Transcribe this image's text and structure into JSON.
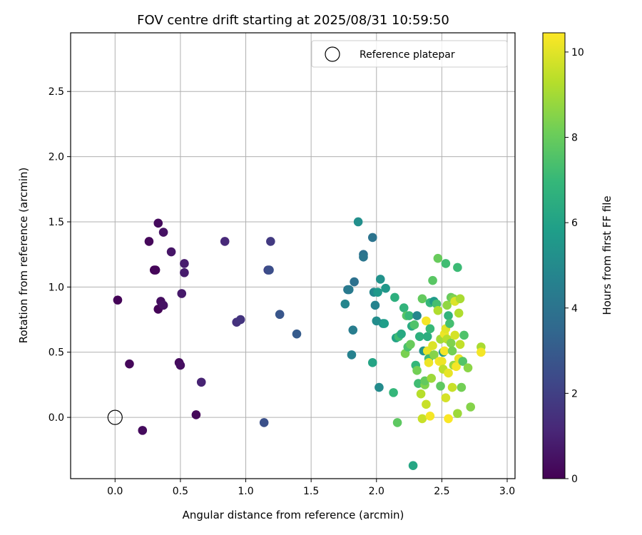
{
  "chart_data": {
    "type": "scatter",
    "title": "FOV centre drift starting at 2025/08/31 10:59:50",
    "xlabel": "Angular distance from reference (arcmin)",
    "ylabel": "Rotation from reference (arcmin)",
    "xlim": [
      -0.34,
      3.06
    ],
    "ylim": [
      -0.47,
      2.95
    ],
    "xticks": [
      0.0,
      0.5,
      1.0,
      1.5,
      2.0,
      2.5,
      3.0
    ],
    "xtick_labels": [
      "0.0",
      "0.5",
      "1.0",
      "1.5",
      "2.0",
      "2.5",
      "3.0"
    ],
    "yticks": [
      0.0,
      0.5,
      1.0,
      1.5,
      2.0,
      2.5
    ],
    "ytick_labels": [
      "0.0",
      "0.5",
      "1.0",
      "1.5",
      "2.0",
      "2.5"
    ],
    "grid": true,
    "legend": {
      "placement": "top-right",
      "entries": [
        {
          "label": "Reference platepar",
          "marker": "open-circle"
        }
      ]
    },
    "reference_point": {
      "x": 0.0,
      "y": 0.0
    },
    "colorbar": {
      "label": "Hours from first FF file",
      "colormap": "viridis",
      "range": [
        0,
        10.45
      ],
      "ticks": [
        0,
        2,
        4,
        6,
        8,
        10
      ],
      "tick_labels": [
        "0",
        "2",
        "4",
        "6",
        "8",
        "10"
      ]
    },
    "colormap_stops": [
      "#440154",
      "#482878",
      "#3e4989",
      "#31688e",
      "#26828e",
      "#1f9e89",
      "#35b779",
      "#6ece58",
      "#b5de2b",
      "#fde725"
    ],
    "points": [
      {
        "x": 0.02,
        "y": 0.9,
        "h": 0.1
      },
      {
        "x": 0.11,
        "y": 0.41,
        "h": 0.2
      },
      {
        "x": 0.21,
        "y": -0.1,
        "h": 0.3
      },
      {
        "x": 0.26,
        "y": 1.35,
        "h": 0.2
      },
      {
        "x": 0.3,
        "y": 1.13,
        "h": 0.1
      },
      {
        "x": 0.31,
        "y": 1.13,
        "h": 0.15
      },
      {
        "x": 0.33,
        "y": 1.49,
        "h": 0.3
      },
      {
        "x": 0.33,
        "y": 0.83,
        "h": 0.1
      },
      {
        "x": 0.35,
        "y": 0.89,
        "h": 0.4
      },
      {
        "x": 0.37,
        "y": 1.42,
        "h": 0.5
      },
      {
        "x": 0.37,
        "y": 0.86,
        "h": 0.5
      },
      {
        "x": 0.43,
        "y": 1.27,
        "h": 0.6
      },
      {
        "x": 0.49,
        "y": 0.42,
        "h": 0.3
      },
      {
        "x": 0.5,
        "y": 0.4,
        "h": 0.4
      },
      {
        "x": 0.51,
        "y": 0.95,
        "h": 0.7
      },
      {
        "x": 0.53,
        "y": 1.18,
        "h": 0.8
      },
      {
        "x": 0.53,
        "y": 1.11,
        "h": 0.8
      },
      {
        "x": 0.62,
        "y": 0.02,
        "h": 0.2
      },
      {
        "x": 0.66,
        "y": 0.27,
        "h": 1.0
      },
      {
        "x": 0.84,
        "y": 1.35,
        "h": 1.2
      },
      {
        "x": 0.93,
        "y": 0.73,
        "h": 1.5
      },
      {
        "x": 0.96,
        "y": 0.75,
        "h": 1.6
      },
      {
        "x": 1.14,
        "y": -0.04,
        "h": 2.6
      },
      {
        "x": 1.17,
        "y": 1.13,
        "h": 2.1
      },
      {
        "x": 1.18,
        "y": 1.13,
        "h": 2.5
      },
      {
        "x": 1.19,
        "y": 1.35,
        "h": 1.8
      },
      {
        "x": 1.26,
        "y": 0.79,
        "h": 2.8
      },
      {
        "x": 1.39,
        "y": 0.64,
        "h": 3.0
      },
      {
        "x": 1.76,
        "y": 0.87,
        "h": 4.8
      },
      {
        "x": 1.78,
        "y": 0.98,
        "h": 4.2
      },
      {
        "x": 1.79,
        "y": 0.98,
        "h": 4.3
      },
      {
        "x": 1.81,
        "y": 0.48,
        "h": 4.6
      },
      {
        "x": 1.82,
        "y": 0.67,
        "h": 4.4
      },
      {
        "x": 1.83,
        "y": 1.04,
        "h": 3.9
      },
      {
        "x": 1.86,
        "y": 1.5,
        "h": 5.2
      },
      {
        "x": 1.9,
        "y": 1.25,
        "h": 3.9
      },
      {
        "x": 1.9,
        "y": 1.23,
        "h": 4.1
      },
      {
        "x": 1.97,
        "y": 1.38,
        "h": 4.0
      },
      {
        "x": 1.97,
        "y": 0.42,
        "h": 6.1
      },
      {
        "x": 1.98,
        "y": 0.96,
        "h": 4.9
      },
      {
        "x": 1.99,
        "y": 0.86,
        "h": 4.7
      },
      {
        "x": 2.0,
        "y": 0.74,
        "h": 5.1
      },
      {
        "x": 2.01,
        "y": 0.96,
        "h": 5.6
      },
      {
        "x": 2.02,
        "y": 0.23,
        "h": 5.0
      },
      {
        "x": 2.03,
        "y": 1.06,
        "h": 5.3
      },
      {
        "x": 2.05,
        "y": 0.72,
        "h": 5.2
      },
      {
        "x": 2.06,
        "y": 0.72,
        "h": 5.8
      },
      {
        "x": 2.07,
        "y": 0.99,
        "h": 5.5
      },
      {
        "x": 2.13,
        "y": 0.19,
        "h": 6.9
      },
      {
        "x": 2.14,
        "y": 0.92,
        "h": 6.6
      },
      {
        "x": 2.15,
        "y": 0.61,
        "h": 6.0
      },
      {
        "x": 2.16,
        "y": -0.04,
        "h": 7.8
      },
      {
        "x": 2.17,
        "y": 0.62,
        "h": 7.2
      },
      {
        "x": 2.19,
        "y": 0.64,
        "h": 6.3
      },
      {
        "x": 2.21,
        "y": 0.84,
        "h": 6.8
      },
      {
        "x": 2.22,
        "y": 0.49,
        "h": 8.3
      },
      {
        "x": 2.23,
        "y": 0.78,
        "h": 7.6
      },
      {
        "x": 2.24,
        "y": 0.54,
        "h": 7.4
      },
      {
        "x": 2.25,
        "y": 0.78,
        "h": 7.0
      },
      {
        "x": 2.26,
        "y": 0.56,
        "h": 8.0
      },
      {
        "x": 2.27,
        "y": 0.7,
        "h": 6.4
      },
      {
        "x": 2.28,
        "y": -0.37,
        "h": 6.2
      },
      {
        "x": 2.29,
        "y": 0.71,
        "h": 7.5
      },
      {
        "x": 2.3,
        "y": 0.4,
        "h": 6.9
      },
      {
        "x": 2.31,
        "y": 0.78,
        "h": 4.8
      },
      {
        "x": 2.31,
        "y": 0.36,
        "h": 8.2
      },
      {
        "x": 2.32,
        "y": 0.26,
        "h": 7.2
      },
      {
        "x": 2.33,
        "y": 0.62,
        "h": 6.6
      },
      {
        "x": 2.34,
        "y": 0.18,
        "h": 9.3
      },
      {
        "x": 2.35,
        "y": -0.01,
        "h": 9.6
      },
      {
        "x": 2.35,
        "y": 0.91,
        "h": 7.9
      },
      {
        "x": 2.36,
        "y": 0.51,
        "h": 5.3
      },
      {
        "x": 2.37,
        "y": 0.25,
        "h": 8.4
      },
      {
        "x": 2.37,
        "y": 0.28,
        "h": 7.9
      },
      {
        "x": 2.38,
        "y": 0.74,
        "h": 10.3
      },
      {
        "x": 2.38,
        "y": 0.1,
        "h": 9.6
      },
      {
        "x": 2.39,
        "y": 0.62,
        "h": 6.5
      },
      {
        "x": 2.39,
        "y": 0.51,
        "h": 10.1
      },
      {
        "x": 2.4,
        "y": 0.45,
        "h": 7.1
      },
      {
        "x": 2.4,
        "y": 0.42,
        "h": 10.2
      },
      {
        "x": 2.41,
        "y": 0.01,
        "h": 10.3
      },
      {
        "x": 2.41,
        "y": 0.88,
        "h": 6.9
      },
      {
        "x": 2.41,
        "y": 0.68,
        "h": 7.0
      },
      {
        "x": 2.42,
        "y": 0.3,
        "h": 8.9
      },
      {
        "x": 2.43,
        "y": 1.05,
        "h": 7.7
      },
      {
        "x": 2.43,
        "y": 0.55,
        "h": 9.9
      },
      {
        "x": 2.44,
        "y": 0.89,
        "h": 5.7
      },
      {
        "x": 2.44,
        "y": 0.48,
        "h": 8.5
      },
      {
        "x": 2.46,
        "y": 0.87,
        "h": 7.3
      },
      {
        "x": 2.47,
        "y": 0.82,
        "h": 9.2
      },
      {
        "x": 2.47,
        "y": 1.22,
        "h": 8.0
      },
      {
        "x": 2.48,
        "y": 0.43,
        "h": 10.3
      },
      {
        "x": 2.49,
        "y": 0.24,
        "h": 7.8
      },
      {
        "x": 2.49,
        "y": 0.6,
        "h": 9.0
      },
      {
        "x": 2.5,
        "y": 0.43,
        "h": 10.2
      },
      {
        "x": 2.51,
        "y": 0.5,
        "h": 5.7
      },
      {
        "x": 2.51,
        "y": 0.37,
        "h": 9.4
      },
      {
        "x": 2.52,
        "y": 0.64,
        "h": 10.2
      },
      {
        "x": 2.52,
        "y": 0.51,
        "h": 10.3
      },
      {
        "x": 2.53,
        "y": 0.15,
        "h": 9.8
      },
      {
        "x": 2.53,
        "y": 0.68,
        "h": 10.0
      },
      {
        "x": 2.53,
        "y": 1.18,
        "h": 7.2
      },
      {
        "x": 2.54,
        "y": 0.86,
        "h": 8.7
      },
      {
        "x": 2.54,
        "y": 0.6,
        "h": 9.3
      },
      {
        "x": 2.55,
        "y": -0.01,
        "h": 10.4
      },
      {
        "x": 2.55,
        "y": 0.78,
        "h": 6.8
      },
      {
        "x": 2.55,
        "y": 0.34,
        "h": 10.1
      },
      {
        "x": 2.56,
        "y": 0.72,
        "h": 7.3
      },
      {
        "x": 2.57,
        "y": 0.92,
        "h": 8.0
      },
      {
        "x": 2.57,
        "y": 0.57,
        "h": 8.4
      },
      {
        "x": 2.58,
        "y": 0.23,
        "h": 9.6
      },
      {
        "x": 2.58,
        "y": 0.51,
        "h": 8.2
      },
      {
        "x": 2.59,
        "y": 0.91,
        "h": 8.4
      },
      {
        "x": 2.59,
        "y": 0.4,
        "h": 8.8
      },
      {
        "x": 2.6,
        "y": 0.63,
        "h": 9.8
      },
      {
        "x": 2.6,
        "y": 0.89,
        "h": 9.9
      },
      {
        "x": 2.61,
        "y": 0.39,
        "h": 10.3
      },
      {
        "x": 2.62,
        "y": 0.03,
        "h": 8.9
      },
      {
        "x": 2.62,
        "y": 1.15,
        "h": 7.1
      },
      {
        "x": 2.63,
        "y": 0.45,
        "h": 10.1
      },
      {
        "x": 2.63,
        "y": 0.8,
        "h": 9.2
      },
      {
        "x": 2.64,
        "y": 0.56,
        "h": 9.5
      },
      {
        "x": 2.64,
        "y": 0.91,
        "h": 9.1
      },
      {
        "x": 2.65,
        "y": 0.23,
        "h": 8.2
      },
      {
        "x": 2.66,
        "y": 0.43,
        "h": 7.6
      },
      {
        "x": 2.67,
        "y": 0.63,
        "h": 7.5
      },
      {
        "x": 2.7,
        "y": 0.38,
        "h": 8.6
      },
      {
        "x": 2.72,
        "y": 0.08,
        "h": 8.5
      },
      {
        "x": 2.8,
        "y": 0.54,
        "h": 9.1
      },
      {
        "x": 2.8,
        "y": 0.5,
        "h": 10.3
      }
    ]
  }
}
